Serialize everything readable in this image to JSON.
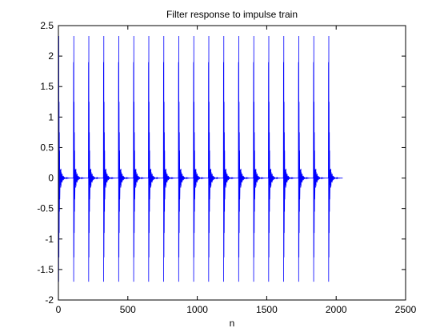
{
  "chart_data": {
    "type": "line",
    "title": "Filter response to impulse train",
    "xlabel": "n",
    "ylabel": "",
    "xlim": [
      0,
      2500
    ],
    "ylim": [
      -2,
      2.5
    ],
    "xticks": [
      0,
      500,
      1000,
      1500,
      2000,
      2500
    ],
    "yticks": [
      -2,
      -1.5,
      -1,
      -0.5,
      0,
      0.5,
      1,
      1.5,
      2,
      2.5
    ],
    "xtick_labels": [
      "0",
      "500",
      "1000",
      "1500",
      "2000",
      "2500"
    ],
    "ytick_labels": [
      "-2",
      "-1.5",
      "-1",
      "-0.5",
      "0",
      "0.5",
      "1",
      "1.5",
      "2",
      "2.5"
    ],
    "grid": false,
    "legend": "none",
    "series": [
      {
        "color": "#0000ff",
        "period": 108,
        "first_impulse": 0,
        "last_n": 2047,
        "burst_peaks": [
          {
            "offset": 1,
            "value": 1.9
          },
          {
            "offset": 2,
            "value": -1.7
          },
          {
            "offset": 3,
            "value": 2.33
          },
          {
            "offset": 4,
            "value": -1.3
          },
          {
            "offset": 5,
            "value": 1.25
          },
          {
            "offset": 6,
            "value": -0.9
          },
          {
            "offset": 7,
            "value": 0.75
          },
          {
            "offset": 8,
            "value": -0.55
          },
          {
            "offset": 9,
            "value": 0.45
          },
          {
            "offset": 10,
            "value": -0.35
          }
        ]
      }
    ]
  }
}
